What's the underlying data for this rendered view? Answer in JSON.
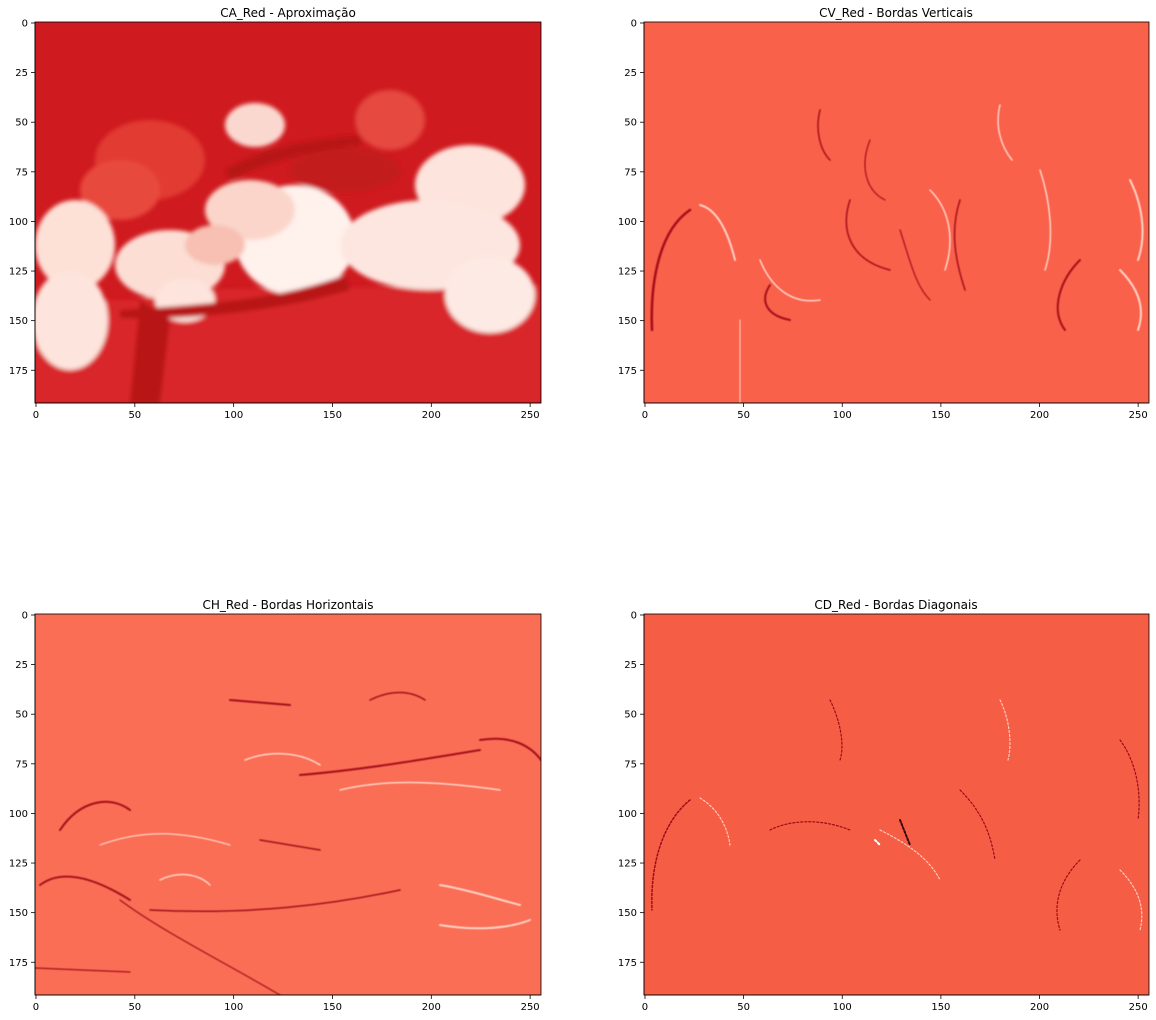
{
  "figure": {
    "panels": [
      {
        "id": "ca",
        "title": "CA_Red - Aproximação",
        "base_color": "#cf1a1f",
        "x_ticks": [
          "0",
          "50",
          "100",
          "150",
          "200",
          "250"
        ],
        "y_ticks": [
          "0",
          "25",
          "50",
          "75",
          "100",
          "125",
          "150",
          "175"
        ]
      },
      {
        "id": "cv",
        "title": "CV_Red - Bordas Verticais",
        "base_color": "#f9614a",
        "x_ticks": [
          "0",
          "50",
          "100",
          "150",
          "200",
          "250"
        ],
        "y_ticks": [
          "0",
          "25",
          "50",
          "75",
          "100",
          "125",
          "150",
          "175"
        ]
      },
      {
        "id": "ch",
        "title": "CH_Red - Bordas Horizontais",
        "base_color": "#fa6e55",
        "x_ticks": [
          "0",
          "50",
          "100",
          "150",
          "200",
          "250"
        ],
        "y_ticks": [
          "0",
          "25",
          "50",
          "75",
          "100",
          "125",
          "150",
          "175"
        ]
      },
      {
        "id": "cd",
        "title": "CD_Red - Bordas Diagonais",
        "base_color": "#f65d45",
        "x_ticks": [
          "0",
          "50",
          "100",
          "150",
          "200",
          "250"
        ],
        "y_ticks": [
          "0",
          "25",
          "50",
          "75",
          "100",
          "125",
          "150",
          "175"
        ]
      }
    ]
  }
}
